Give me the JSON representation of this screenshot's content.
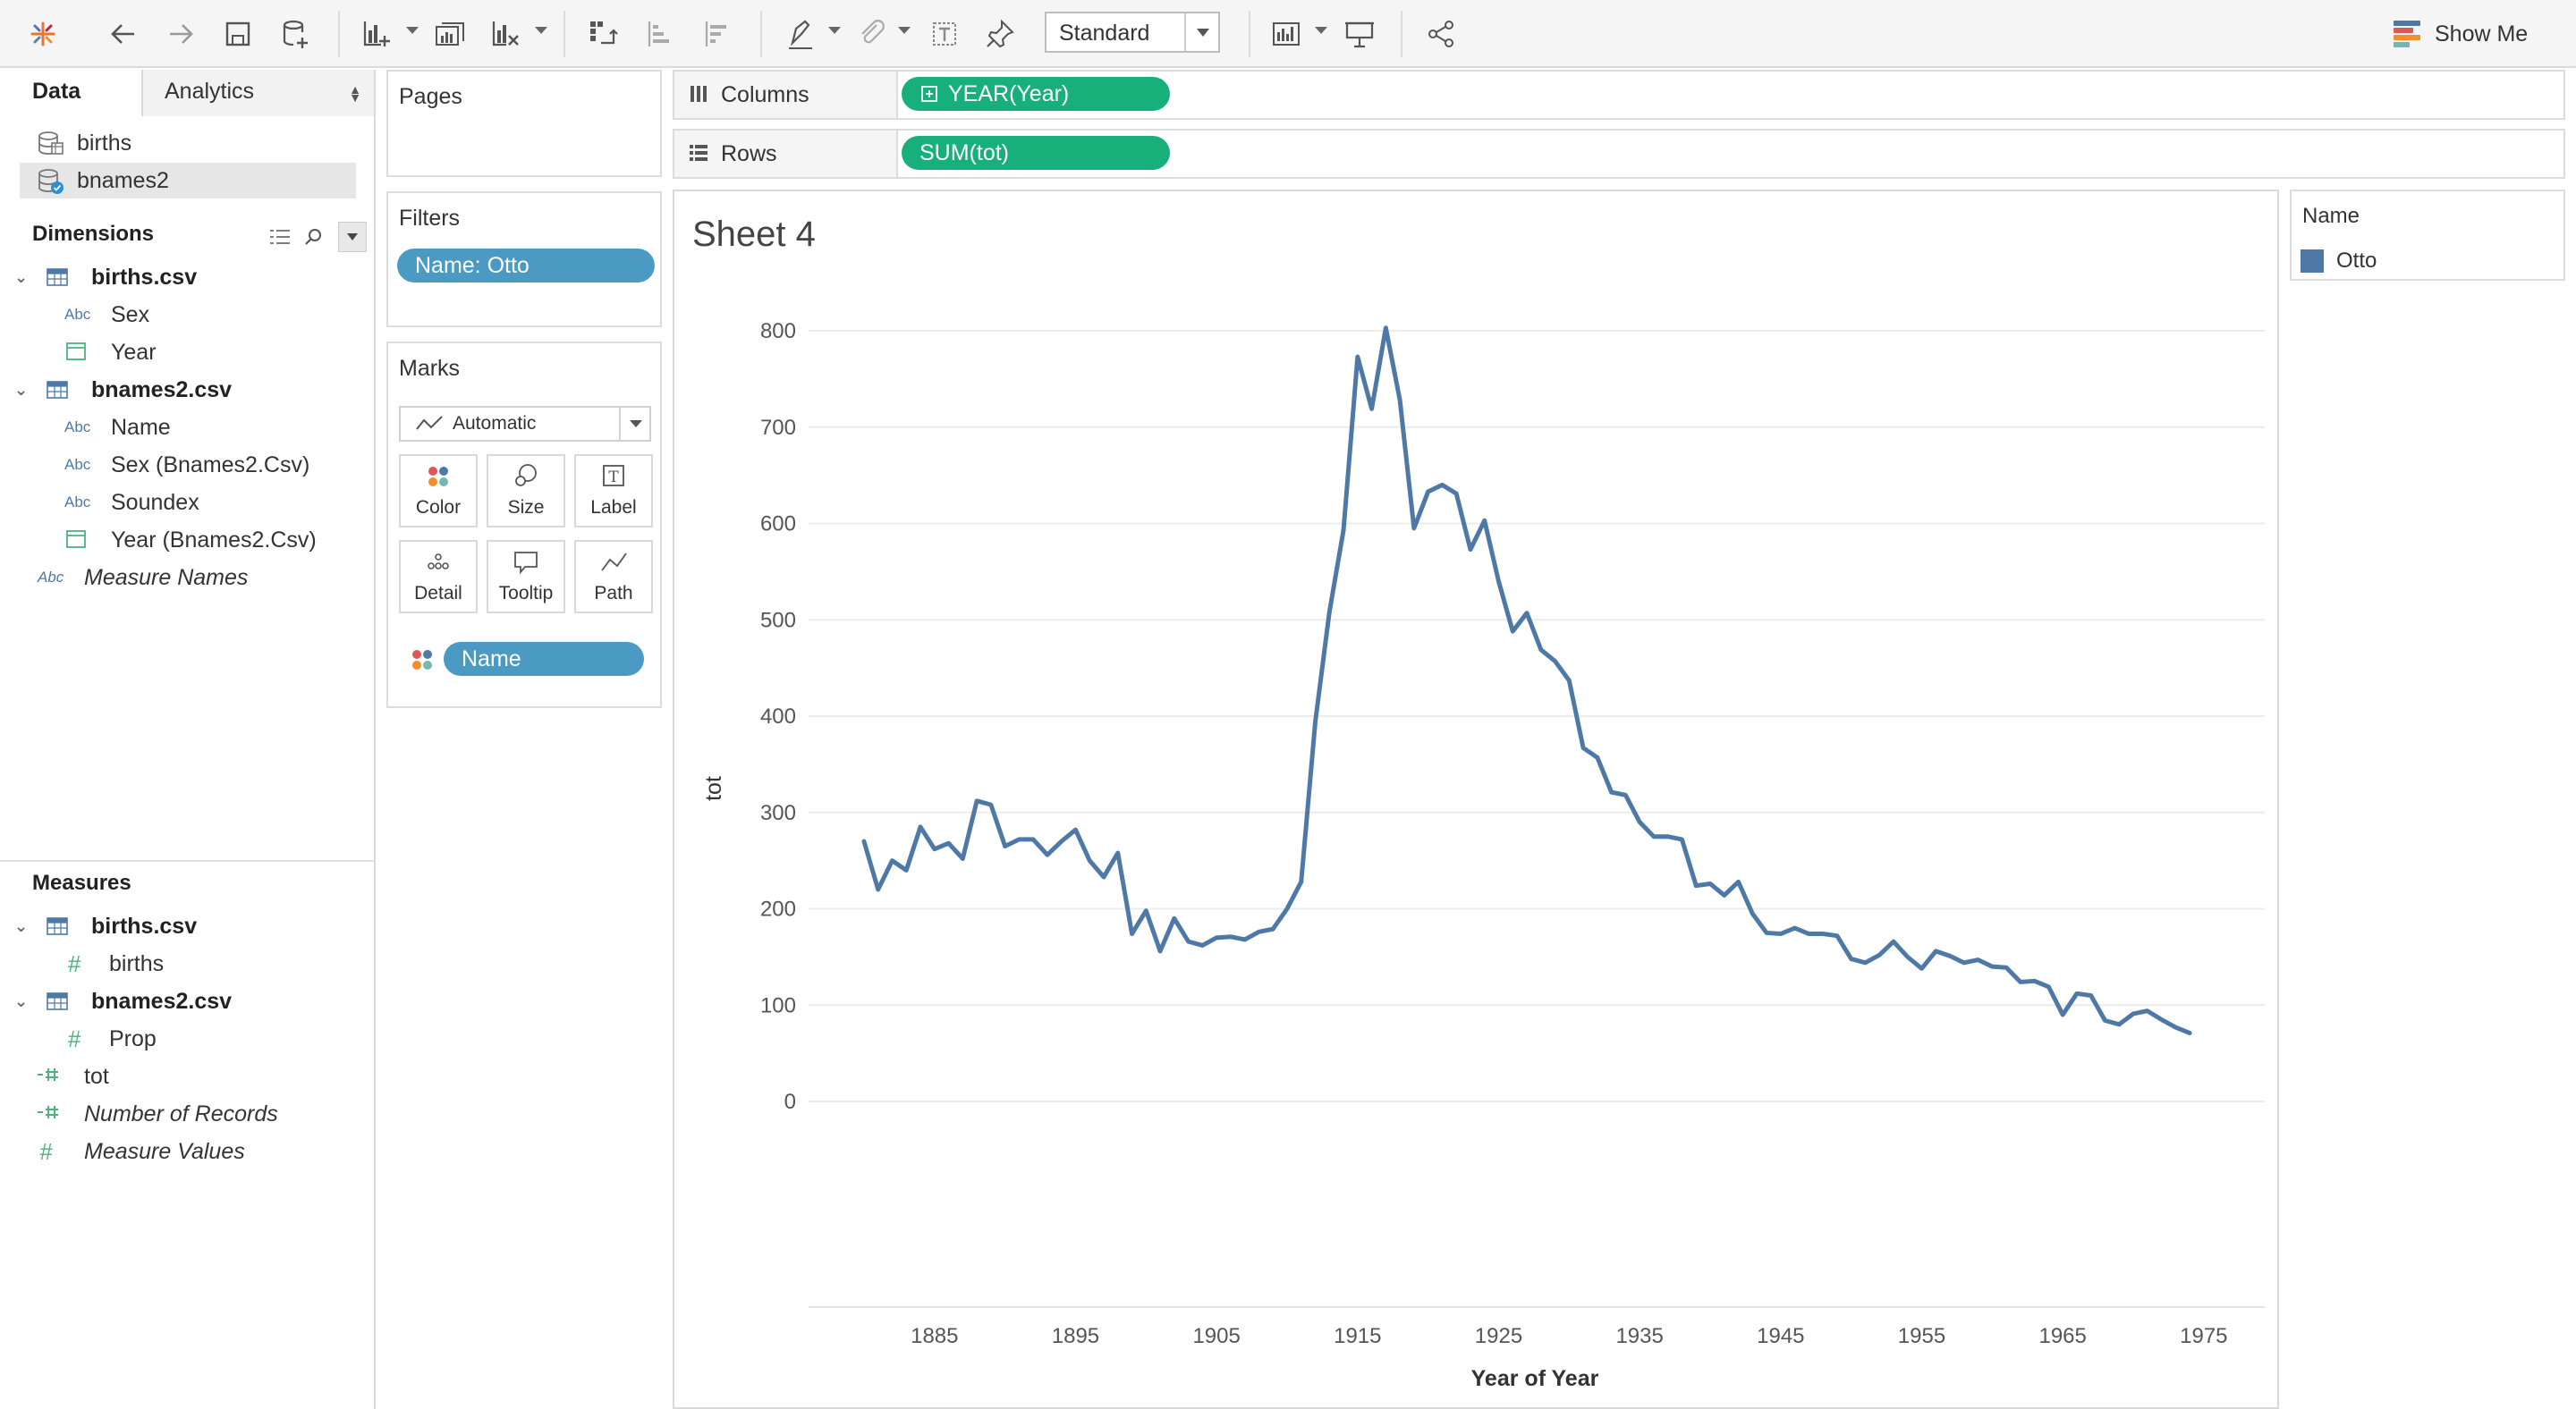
{
  "toolbar": {
    "fit_value": "Standard",
    "show_me": "Show Me",
    "icons": [
      "tableau-logo-icon",
      "undo-icon",
      "redo-icon",
      "save-icon",
      "new-datasource-icon",
      "new-worksheet-icon",
      "duplicate-icon",
      "clear-icon",
      "swap-icon",
      "sort-ascending-icon",
      "sort-descending-icon",
      "highlight-icon",
      "group-icon",
      "label-icon",
      "pin-icon",
      "show-cards-icon",
      "presentation-icon",
      "share-icon"
    ]
  },
  "left_pane": {
    "tabs": {
      "data": "Data",
      "analytics": "Analytics"
    },
    "datasources": [
      {
        "label": "births",
        "selected": false
      },
      {
        "label": "bnames2",
        "selected": true
      }
    ],
    "dimensions_title": "Dimensions",
    "dimensions": {
      "births_table": "births.csv",
      "births_fields": [
        "Sex",
        "Year"
      ],
      "bnames_table": "bnames2.csv",
      "bnames_fields": [
        "Name",
        "Sex (Bnames2.Csv)",
        "Soundex",
        "Year (Bnames2.Csv)"
      ],
      "measure_names": "Measure Names"
    },
    "measures_title": "Measures",
    "measures": {
      "births_table": "births.csv",
      "births_fields": [
        "births"
      ],
      "bnames_table": "bnames2.csv",
      "bnames_fields": [
        "Prop"
      ],
      "calc": [
        "tot"
      ],
      "generated": [
        "Number of Records",
        "Measure Values"
      ]
    },
    "type_labels": {
      "string": "Abc",
      "number": "#"
    }
  },
  "cards": {
    "pages": "Pages",
    "filters": "Filters",
    "filter_pill": "Name: Otto",
    "marks": "Marks",
    "mark_type": "Automatic",
    "mark_buttons": [
      "Color",
      "Size",
      "Label",
      "Detail",
      "Tooltip",
      "Path"
    ],
    "label_glyph": "T",
    "color_pill": "Name"
  },
  "shelves": {
    "columns_label": "Columns",
    "columns_pill": "YEAR(Year)",
    "rows_label": "Rows",
    "rows_pill": "SUM(tot)"
  },
  "sheet_title": "Sheet 4",
  "legend": {
    "title": "Name",
    "items": [
      {
        "label": "Otto",
        "color": "#4e79a7"
      }
    ]
  },
  "chart_data": {
    "type": "line",
    "title": "Sheet 4",
    "xlabel": "Year of Year",
    "ylabel": "tot",
    "xlim": [
      1880,
      1974
    ],
    "ylim": [
      0,
      800
    ],
    "x_ticks": [
      1885,
      1895,
      1905,
      1915,
      1925,
      1935,
      1945,
      1955,
      1965,
      1975
    ],
    "y_ticks": [
      0,
      100,
      200,
      300,
      400,
      500,
      600,
      700,
      800
    ],
    "grid": true,
    "legend_position": "right",
    "series": [
      {
        "name": "Otto",
        "color": "#4e79a7",
        "x": [
          1880,
          1881,
          1882,
          1883,
          1884,
          1885,
          1886,
          1887,
          1888,
          1889,
          1890,
          1891,
          1892,
          1893,
          1894,
          1895,
          1896,
          1897,
          1898,
          1899,
          1900,
          1901,
          1902,
          1903,
          1904,
          1905,
          1906,
          1907,
          1908,
          1909,
          1910,
          1911,
          1912,
          1913,
          1914,
          1915,
          1916,
          1917,
          1918,
          1919,
          1920,
          1921,
          1922,
          1923,
          1924,
          1925,
          1926,
          1927,
          1928,
          1929,
          1930,
          1931,
          1932,
          1933,
          1934,
          1935,
          1936,
          1937,
          1938,
          1939,
          1940,
          1941,
          1942,
          1943,
          1944,
          1945,
          1946,
          1947,
          1948,
          1949,
          1950,
          1951,
          1952,
          1953,
          1954,
          1955,
          1956,
          1957,
          1958,
          1959,
          1960,
          1961,
          1962,
          1963,
          1964,
          1965,
          1966,
          1967,
          1968,
          1969,
          1970,
          1971,
          1972,
          1973,
          1974
        ],
        "values": [
          270,
          220,
          250,
          240,
          285,
          262,
          268,
          252,
          312,
          308,
          265,
          272,
          272,
          256,
          270,
          282,
          250,
          233,
          258,
          174,
          198,
          156,
          190,
          166,
          162,
          170,
          171,
          168,
          176,
          179,
          200,
          228,
          394,
          508,
          593,
          773,
          719,
          803,
          728,
          595,
          633,
          640,
          631,
          573,
          603,
          540,
          488,
          507,
          469,
          457,
          437,
          367,
          357,
          321,
          318,
          290,
          275,
          275,
          272,
          224,
          226,
          214,
          228,
          195,
          175,
          174,
          180,
          174,
          174,
          172,
          148,
          144,
          152,
          166,
          150,
          138,
          156,
          151,
          144,
          147,
          140,
          139,
          124,
          125,
          119,
          90,
          112,
          110,
          84,
          80,
          91,
          94,
          85,
          77,
          71
        ]
      }
    ]
  }
}
